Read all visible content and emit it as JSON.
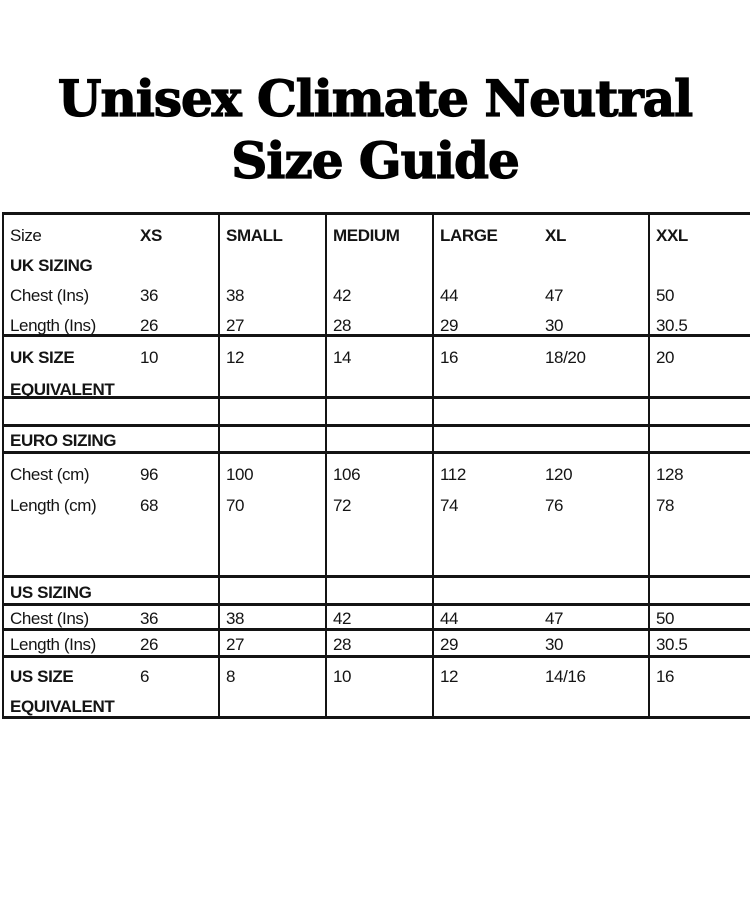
{
  "title": {
    "line1": "Unisex Climate Neutral",
    "line2": "Size Guide"
  },
  "colors": {
    "ink": "#141414",
    "background": "#ffffff",
    "title_text": "#000000"
  },
  "table": {
    "header": {
      "size_label": "Size",
      "xs": "XS",
      "small": "SMALL",
      "medium": "MEDIUM",
      "large": "LARGE",
      "xl": "XL",
      "xxl": "XXL"
    },
    "uk": {
      "section_label": "UK SIZING",
      "chest_label": "Chest (Ins)",
      "chest": [
        "36",
        "38",
        "42",
        "44",
        "47",
        "50"
      ],
      "length_label": "Length (Ins)",
      "length": [
        "26",
        "27",
        "28",
        "29",
        "30",
        "30.5"
      ],
      "equiv_label_line1": "UK SIZE",
      "equiv_label_line2": "EQUIVALENT",
      "equiv": [
        "10",
        "12",
        "14",
        "16",
        "18/20",
        "20"
      ]
    },
    "euro": {
      "section_label": "EURO SIZING",
      "chest_label": "Chest (cm)",
      "chest": [
        "96",
        "100",
        "106",
        "112",
        "120",
        "128"
      ],
      "length_label": "Length (cm)",
      "length": [
        "68",
        "70",
        "72",
        "74",
        "76",
        "78"
      ]
    },
    "us": {
      "section_label": "US SIZING",
      "chest_label": "Chest (Ins)",
      "chest": [
        "36",
        "38",
        "42",
        "44",
        "47",
        "50"
      ],
      "length_label": "Length (Ins)",
      "length": [
        "26",
        "27",
        "28",
        "29",
        "30",
        "30.5"
      ],
      "equiv_label_line1": "US SIZE",
      "equiv_label_line2": "EQUIVALENT",
      "equiv": [
        "6",
        "8",
        "10",
        "12",
        "14/16",
        "16"
      ]
    }
  }
}
